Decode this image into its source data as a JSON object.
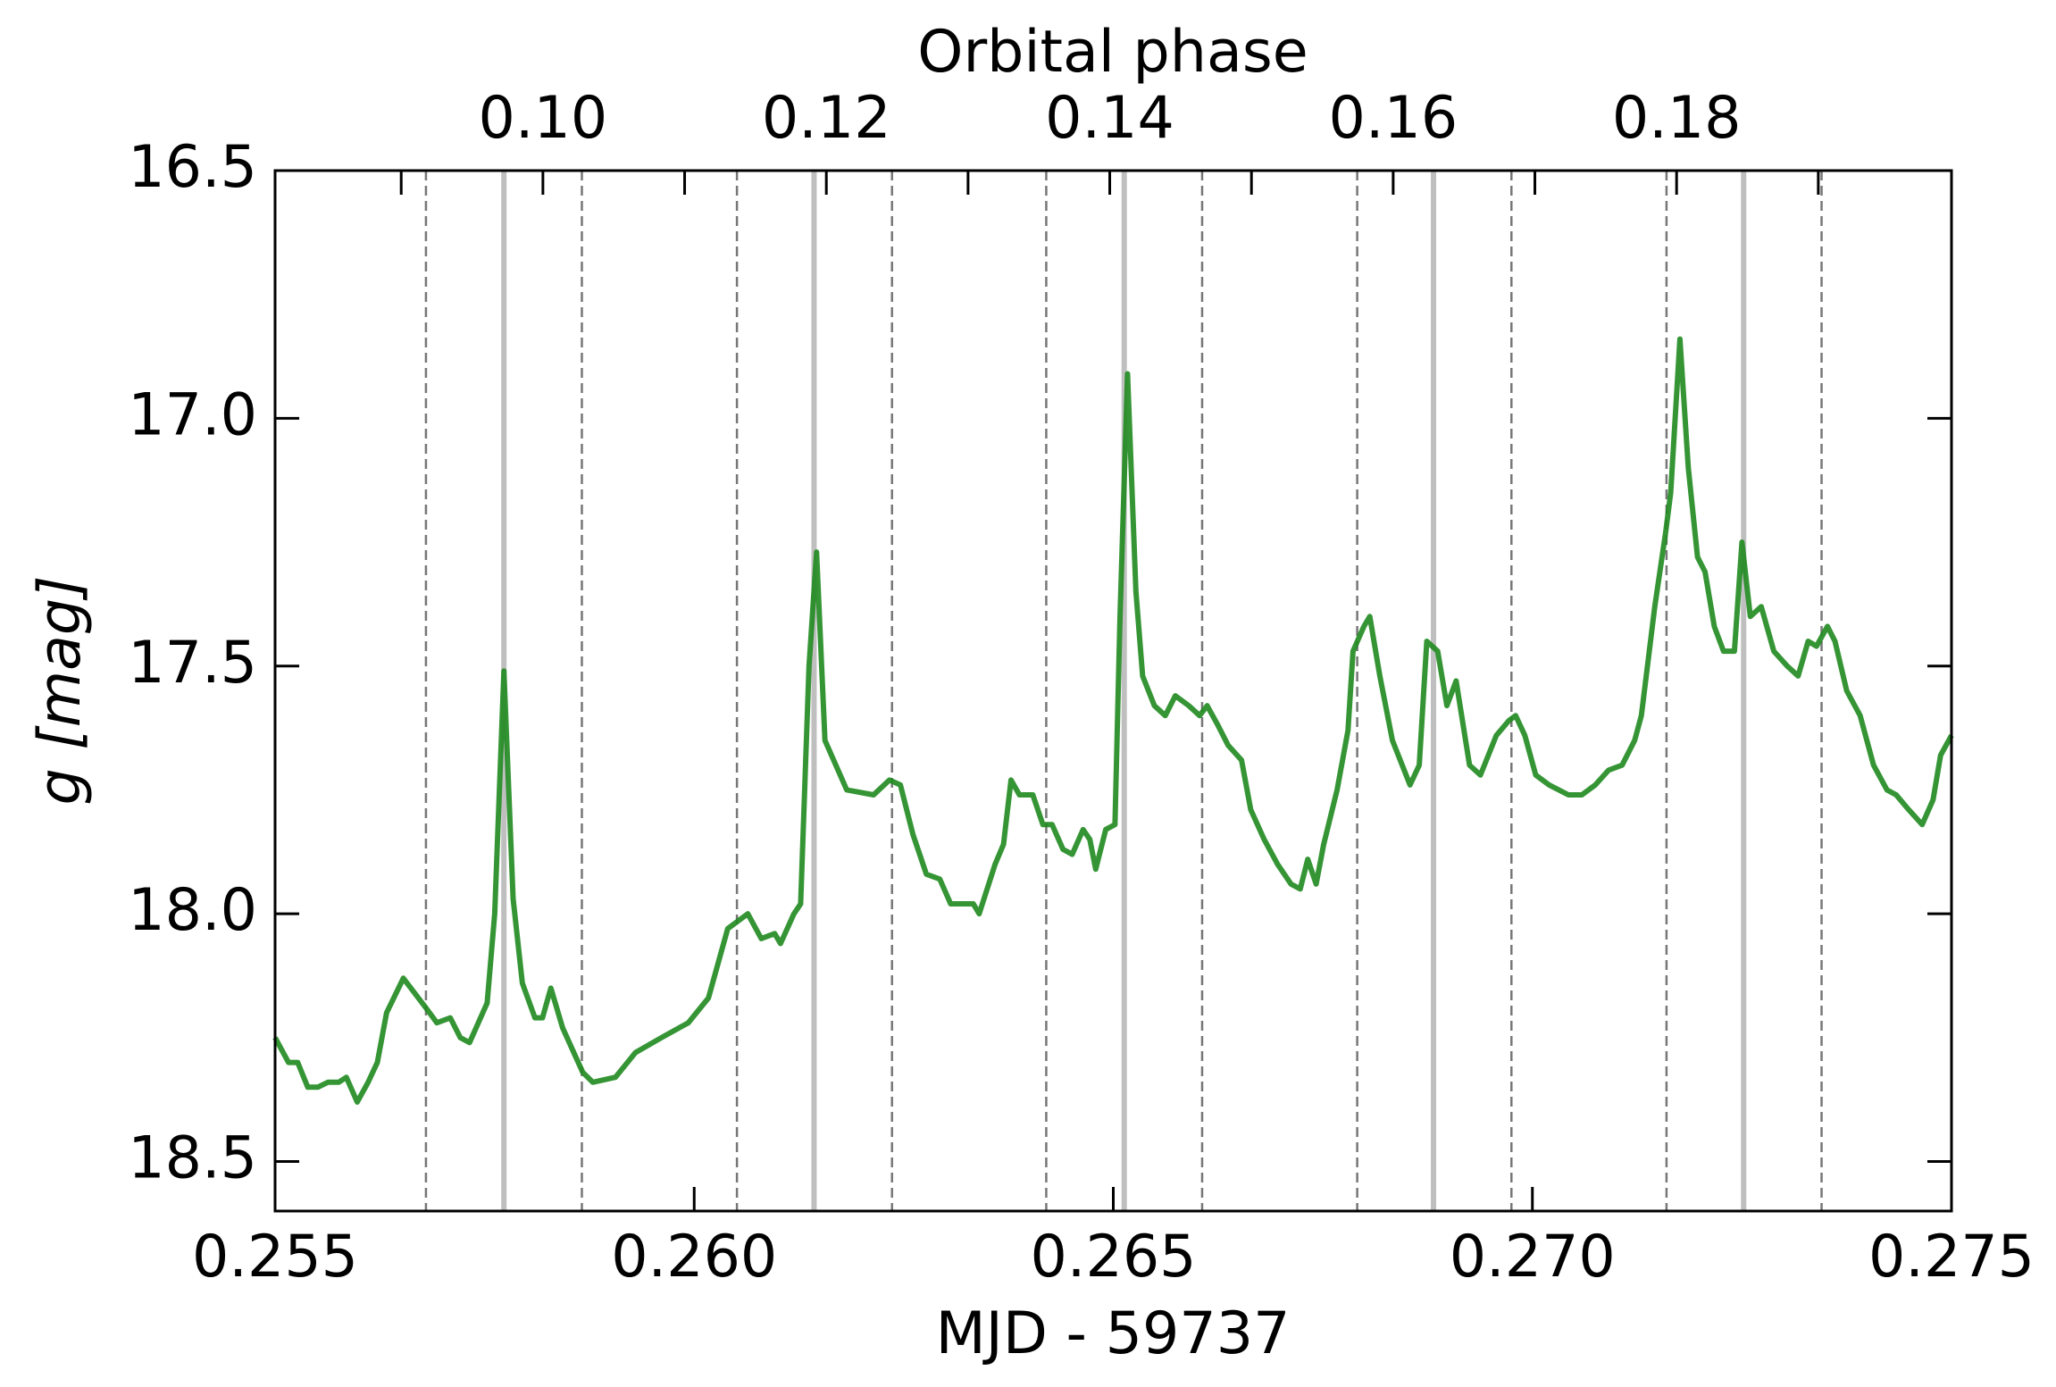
{
  "chart_data": {
    "type": "line",
    "title": "Orbital phase",
    "xlabel": "MJD - 59737",
    "ylabel": "g [mag]",
    "xlim": [
      0.255,
      0.275
    ],
    "xticks": [
      0.255,
      {
        "value": 0.26,
        "label": "0.260"
      },
      0.265,
      {
        "value": 0.27,
        "label": "0.270"
      },
      0.275
    ],
    "ylim": [
      18.6,
      16.5
    ],
    "yticks": [
      16.5,
      {
        "value": 17,
        "label": "17.0"
      },
      17.5,
      {
        "value": 18,
        "label": "18.0"
      },
      18.5
    ],
    "x2lim": [
      0.0811,
      0.1994
    ],
    "x2ticks": [
      {
        "value": 0.1,
        "label": "0.10"
      },
      {
        "value": 0.12,
        "label": "0.12"
      },
      {
        "value": 0.14,
        "label": "0.14"
      },
      {
        "value": 0.16,
        "label": "0.16"
      },
      {
        "value": 0.18,
        "label": "0.18"
      }
    ],
    "x2minor": [
      0.09,
      0.11,
      0.13,
      0.15,
      0.17,
      0.19
    ],
    "reference_lines": {
      "solid": {
        "color": "#bfbfbf",
        "x": [
          0.25773,
          0.26143,
          0.26513,
          0.26882,
          0.27252
        ]
      },
      "dashed": {
        "color": "#777777",
        "x": [
          0.2568,
          0.25866,
          0.26051,
          0.26236,
          0.2642,
          0.26606,
          0.26791,
          0.26975,
          0.2716,
          0.27345
        ]
      }
    },
    "x": [
      0.255,
      0.25516,
      0.25527,
      0.25539,
      0.25551,
      0.25563,
      0.25576,
      0.25585,
      0.25598,
      0.25611,
      0.25622,
      0.25633,
      0.25653,
      0.2568,
      0.25693,
      0.25709,
      0.25721,
      0.25732,
      0.25753,
      0.25762,
      0.25773,
      0.25784,
      0.25795,
      0.2581,
      0.25819,
      0.25829,
      0.25843,
      0.25867,
      0.25879,
      0.25906,
      0.2593,
      0.25961,
      0.25993,
      0.26017,
      0.2604,
      0.26064,
      0.2608,
      0.26096,
      0.26103,
      0.26119,
      0.26127,
      0.26137,
      0.26146,
      0.26156,
      0.26182,
      0.26214,
      0.26233,
      0.26246,
      0.26261,
      0.26277,
      0.26293,
      0.26306,
      0.26333,
      0.2634,
      0.26359,
      0.26369,
      0.26378,
      0.26388,
      0.26404,
      0.26416,
      0.26427,
      0.2644,
      0.26451,
      0.26464,
      0.26472,
      0.26479,
      0.26491,
      0.26502,
      0.26508,
      0.26517,
      0.26527,
      0.26535,
      0.26549,
      0.26562,
      0.26574,
      0.2659,
      0.26603,
      0.26612,
      0.26625,
      0.26637,
      0.26653,
      0.26664,
      0.2668,
      0.26696,
      0.26712,
      0.26723,
      0.26732,
      0.26742,
      0.26751,
      0.26767,
      0.2678,
      0.26786,
      0.26799,
      0.26806,
      0.26818,
      0.26833,
      0.26854,
      0.26865,
      0.26874,
      0.26887,
      0.26898,
      0.26909,
      0.26925,
      0.26938,
      0.26957,
      0.26972,
      0.2698,
      0.26991,
      0.27004,
      0.2702,
      0.27043,
      0.27059,
      0.27075,
      0.27091,
      0.27107,
      0.27122,
      0.2713,
      0.27146,
      0.27159,
      0.27165,
      0.27176,
      0.27186,
      0.27197,
      0.27206,
      0.27217,
      0.27228,
      0.27241,
      0.2725,
      0.2726,
      0.27273,
      0.27288,
      0.27304,
      0.27317,
      0.27329,
      0.27339,
      0.27352,
      0.27361,
      0.27375,
      0.27391,
      0.27407,
      0.27423,
      0.27434,
      0.27449,
      0.27465,
      0.27478,
      0.27487,
      0.275
    ],
    "series": [
      {
        "color": "#1f8a1f",
        "values": [
          18.25,
          18.3,
          18.3,
          18.35,
          18.35,
          18.34,
          18.34,
          18.33,
          18.38,
          18.34,
          18.3,
          18.2,
          18.13,
          18.19,
          18.22,
          18.21,
          18.25,
          18.26,
          18.18,
          18.0,
          17.51,
          17.97,
          18.14,
          18.21,
          18.21,
          18.15,
          18.23,
          18.32,
          18.34,
          18.33,
          18.28,
          18.25,
          18.22,
          18.17,
          18.03,
          18.0,
          18.05,
          18.04,
          18.06,
          18.0,
          17.98,
          17.5,
          17.27,
          17.65,
          17.75,
          17.76,
          17.73,
          17.74,
          17.84,
          17.92,
          17.93,
          17.98,
          17.98,
          18.0,
          17.9,
          17.86,
          17.73,
          17.76,
          17.76,
          17.82,
          17.82,
          17.87,
          17.88,
          17.83,
          17.85,
          17.91,
          17.83,
          17.82,
          17.4,
          16.91,
          17.35,
          17.52,
          17.58,
          17.6,
          17.56,
          17.58,
          17.6,
          17.58,
          17.62,
          17.66,
          17.69,
          17.79,
          17.85,
          17.9,
          17.94,
          17.95,
          17.89,
          17.94,
          17.86,
          17.75,
          17.63,
          17.47,
          17.42,
          17.4,
          17.52,
          17.65,
          17.74,
          17.7,
          17.45,
          17.47,
          17.58,
          17.53,
          17.7,
          17.72,
          17.64,
          17.61,
          17.6,
          17.64,
          17.72,
          17.74,
          17.76,
          17.76,
          17.74,
          17.71,
          17.7,
          17.65,
          17.6,
          17.38,
          17.23,
          17.15,
          16.84,
          17.1,
          17.28,
          17.31,
          17.42,
          17.47,
          17.47,
          17.25,
          17.4,
          17.38,
          17.47,
          17.5,
          17.52,
          17.45,
          17.46,
          17.42,
          17.45,
          17.55,
          17.6,
          17.7,
          17.75,
          17.76,
          17.79,
          17.82,
          17.77,
          17.68,
          17.64
        ]
      }
    ]
  }
}
